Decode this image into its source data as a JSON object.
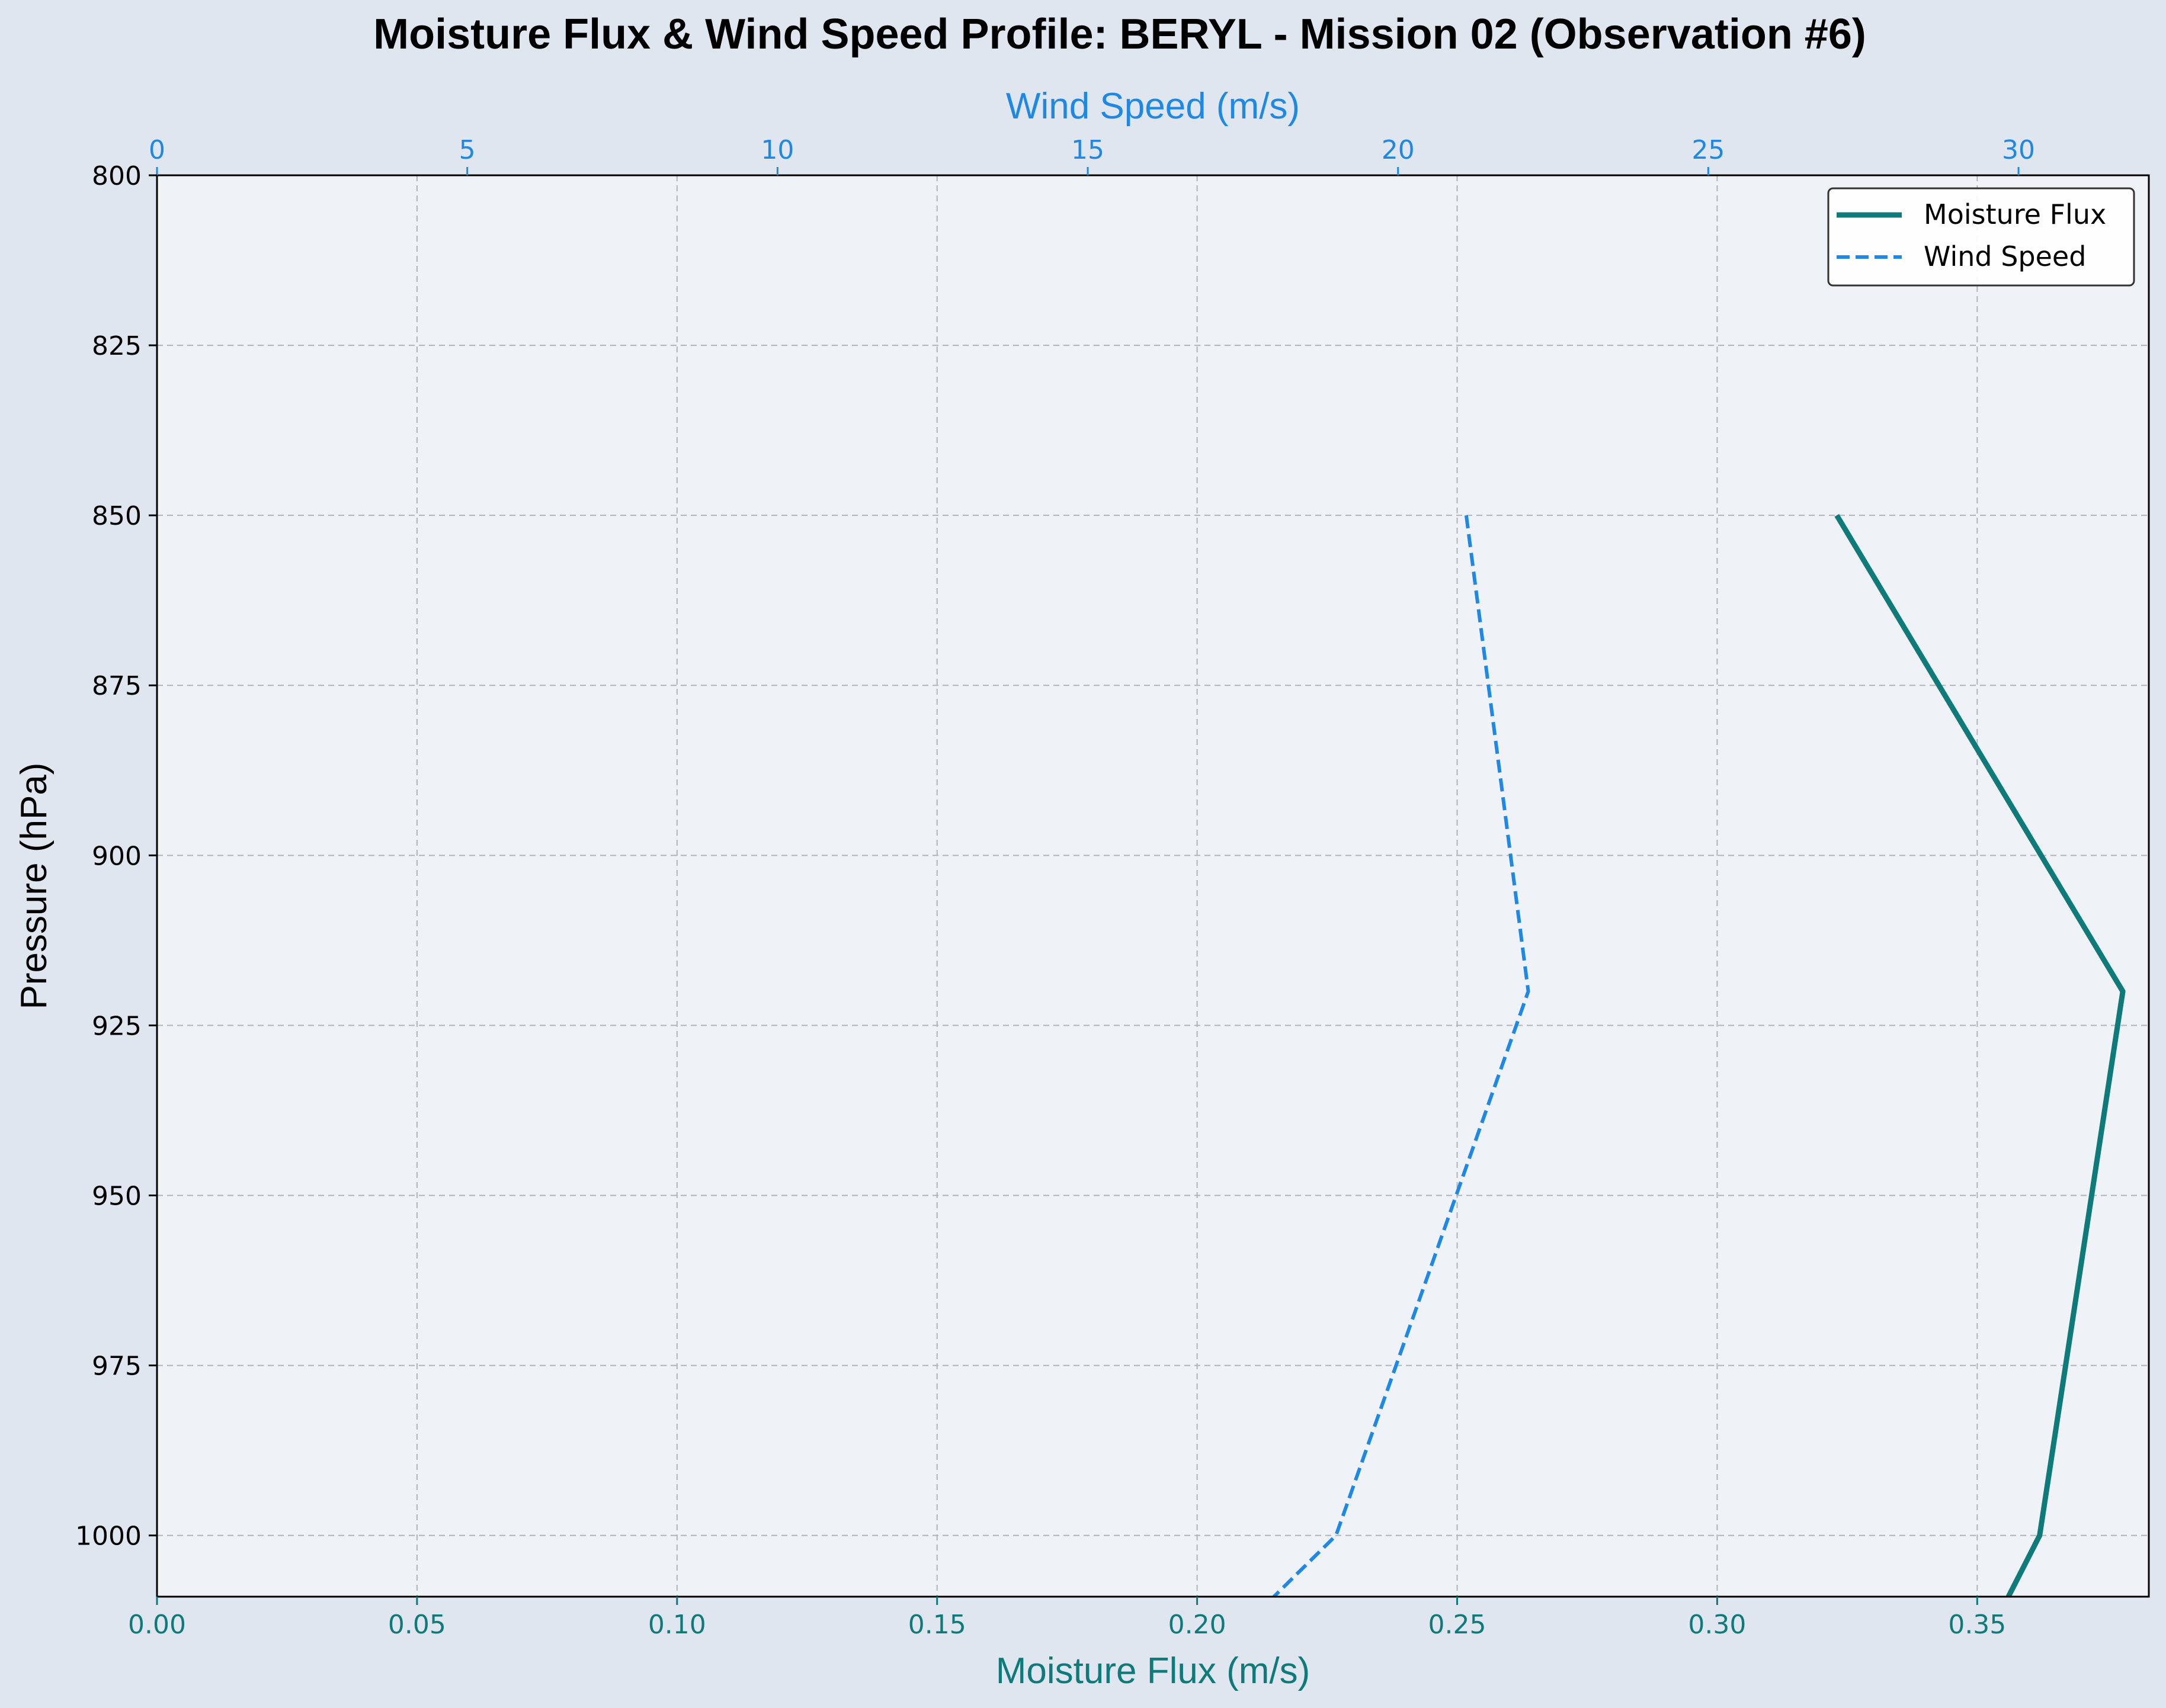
{
  "chart_data": {
    "type": "line",
    "title": "Moisture Flux & Wind Speed Profile: BERYL - Mission 02 (Observation #6)",
    "xlabel": "Moisture Flux (m/s)",
    "x2label": "Wind Speed (m/s)",
    "ylabel": "Pressure (hPa)",
    "xlim": [
      0,
      0.383
    ],
    "x2lim": [
      0,
      32.1
    ],
    "ylim": [
      1009,
      800
    ],
    "y_inverted": true,
    "grid": true,
    "grid_style": "dashed",
    "legend_position": "top-right",
    "x_ticks": [
      "0.00",
      "0.05",
      "0.10",
      "0.15",
      "0.20",
      "0.25",
      "0.30",
      "0.35"
    ],
    "x2_ticks": [
      "0",
      "5",
      "10",
      "15",
      "20",
      "25",
      "30"
    ],
    "y_ticks": [
      "800",
      "825",
      "850",
      "875",
      "900",
      "925",
      "950",
      "975",
      "1000"
    ],
    "series": [
      {
        "name": "Moisture Flux",
        "axis": "bottom",
        "color": "#0e7a7a",
        "style": "solid",
        "points": [
          {
            "p": 850,
            "v": 0.323
          },
          {
            "p": 920,
            "v": 0.378
          },
          {
            "p": 1000,
            "v": 0.362
          },
          {
            "p": 1009,
            "v": 0.356
          }
        ]
      },
      {
        "name": "Wind Speed",
        "axis": "top",
        "color": "#1f88e5",
        "style": "dashed",
        "points": [
          {
            "p": 850,
            "v": 21.1
          },
          {
            "p": 920,
            "v": 22.1
          },
          {
            "p": 1000,
            "v": 19.0
          },
          {
            "p": 1009,
            "v": 18.0
          }
        ]
      }
    ]
  },
  "colors": {
    "figure_bg": "#e0e6f0",
    "plot_bg": "#eff3f8",
    "grid": "#b0b4b8",
    "bottom_axis": "#0e7a7a",
    "top_axis": "#1f88e5",
    "left_axis": "#000000"
  }
}
